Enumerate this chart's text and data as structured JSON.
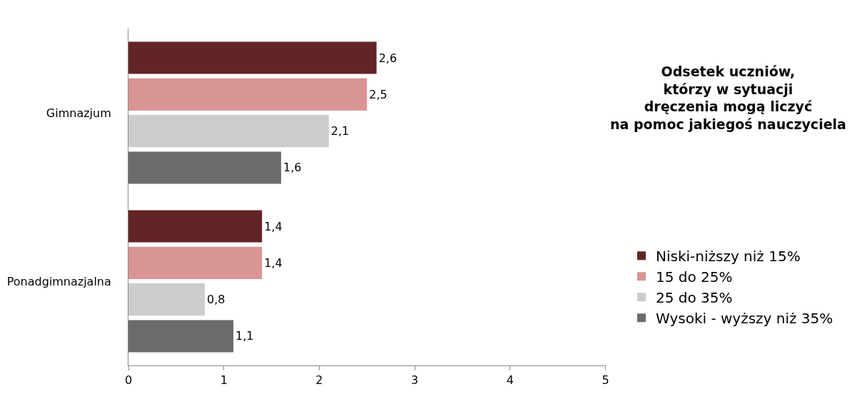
{
  "chart_data": {
    "type": "bar",
    "orientation": "horizontal",
    "title": "Odsetek uczniów,\nktórzy w sytuacji\ndręczenia mogą liczyć\nna pomoc jakiegoś nauczyciela",
    "categories": [
      "Gimnazjum",
      "Ponadgimnazjalna"
    ],
    "series": [
      {
        "name": "Niski-niższy niż 15%",
        "color": "#632426",
        "values": [
          2.6,
          1.4
        ],
        "value_labels": [
          "2,6",
          "1,4"
        ]
      },
      {
        "name": "15 do 25%",
        "color": "#d99594",
        "values": [
          2.5,
          1.4
        ],
        "value_labels": [
          "2,5",
          "1,4"
        ]
      },
      {
        "name": "25 do 35%",
        "color": "#cccccc",
        "values": [
          2.1,
          0.8
        ],
        "value_labels": [
          "2,1",
          "0,8"
        ]
      },
      {
        "name": "Wysoki - wyższy niż 35%",
        "color": "#6b6b6b",
        "values": [
          1.6,
          1.1
        ],
        "value_labels": [
          "1,6",
          "1,1"
        ]
      }
    ],
    "xlim": [
      0,
      5
    ],
    "xticks": [
      0,
      1,
      2,
      3,
      4,
      5
    ],
    "legend": "right"
  }
}
